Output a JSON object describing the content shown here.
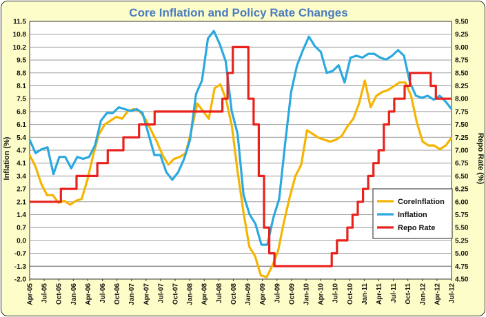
{
  "chart_data": {
    "type": "line",
    "title": "Core Inflation and Policy Rate Changes",
    "ylabel_left": "Inflation (%)",
    "ylabel_right": "Repo Rate (%)",
    "y_left_ticks": [
      "11.5",
      "10.8",
      "10.2",
      "9.5",
      "8.8",
      "8.1",
      "7.5",
      "6.8",
      "6.1",
      "5.4",
      "4.7",
      "4.1",
      "3.4",
      "2.7",
      "2.1",
      "1.4",
      "0.7",
      "0.0",
      "-0.7",
      "-1.3",
      "-2.0"
    ],
    "y_right_ticks": [
      "9.50",
      "9.25",
      "9.00",
      "8.75",
      "8.50",
      "8.25",
      "8.00",
      "7.75",
      "7.50",
      "7.25",
      "7.00",
      "6.75",
      "6.50",
      "6.25",
      "6.00",
      "5.75",
      "5.50",
      "5.25",
      "5.00",
      "4.75",
      "4.50"
    ],
    "y_left_range": [
      -2.0,
      11.5
    ],
    "y_right_range": [
      4.5,
      9.5
    ],
    "x_ticks": [
      "Apr-05",
      "Jul-05",
      "Oct-05",
      "Jan-06",
      "Apr-06",
      "Jul-06",
      "Oct-06",
      "Jan-07",
      "Apr-07",
      "Jul-07",
      "Oct-07",
      "Jan-08",
      "Apr-08",
      "Jul-08",
      "Oct-08",
      "Jan-09",
      "Apr-09",
      "Jul-09",
      "Oct-09",
      "Jan-10",
      "Apr-10",
      "Jul-10",
      "Oct-10",
      "Jan-11",
      "Apr-11",
      "Jul-11",
      "Oct-11",
      "Jan-12",
      "Apr-12",
      "Jul-12"
    ],
    "grid": "horizontal",
    "legend_position": "right",
    "series": [
      {
        "name": "CoreInflation",
        "axis": "left",
        "color": "#f4b400",
        "values": [
          4.5,
          3.9,
          3.0,
          2.4,
          2.4,
          2.0,
          2.1,
          1.9,
          2.1,
          2.2,
          3.2,
          4.5,
          5.6,
          6.1,
          6.3,
          6.5,
          6.4,
          6.8,
          6.9,
          6.8,
          6.4,
          5.8,
          5.2,
          4.5,
          4.0,
          4.3,
          4.4,
          4.6,
          5.8,
          7.2,
          6.8,
          6.4,
          8.0,
          8.2,
          7.4,
          6.0,
          3.6,
          1.5,
          -0.3,
          -0.8,
          -1.8,
          -1.9,
          -1.3,
          -0.5,
          1.0,
          2.3,
          3.4,
          4.0,
          5.8,
          5.6,
          5.4,
          5.3,
          5.2,
          5.3,
          5.5,
          6.0,
          6.4,
          7.2,
          8.4,
          7.0,
          7.6,
          7.8,
          7.9,
          8.1,
          8.3,
          8.3,
          7.6,
          6.2,
          5.2,
          5.0,
          5.0,
          4.8,
          5.0,
          5.4
        ]
      },
      {
        "name": "Inflation",
        "axis": "left",
        "color": "#2aa8e0",
        "values": [
          5.3,
          4.6,
          4.8,
          4.9,
          3.5,
          4.4,
          4.4,
          3.8,
          4.4,
          4.3,
          4.4,
          5.0,
          6.3,
          6.7,
          6.7,
          7.0,
          6.9,
          6.8,
          6.9,
          6.7,
          5.6,
          4.5,
          4.5,
          3.6,
          3.2,
          3.6,
          4.3,
          5.3,
          7.7,
          8.4,
          10.6,
          11.0,
          10.3,
          9.4,
          6.8,
          5.6,
          2.4,
          1.4,
          0.9,
          -0.2,
          -0.2,
          1.2,
          2.2,
          5.1,
          7.8,
          9.2,
          10.0,
          10.7,
          10.2,
          9.9,
          8.8,
          8.9,
          9.2,
          8.3,
          9.6,
          9.7,
          9.6,
          9.8,
          9.8,
          9.6,
          9.5,
          9.7,
          10.0,
          9.7,
          8.3,
          7.6,
          7.5,
          7.6,
          7.4,
          7.6,
          7.3,
          6.9
        ]
      },
      {
        "name": "Repo Rate",
        "axis": "right",
        "color": "#e8211c",
        "values": [
          6.0,
          6.0,
          6.0,
          6.0,
          6.0,
          6.0,
          6.25,
          6.25,
          6.25,
          6.5,
          6.5,
          6.5,
          6.5,
          6.75,
          6.75,
          7.0,
          7.0,
          7.0,
          7.25,
          7.25,
          7.25,
          7.5,
          7.5,
          7.5,
          7.75,
          7.75,
          7.75,
          7.75,
          7.75,
          7.75,
          7.75,
          7.75,
          7.75,
          7.75,
          7.75,
          7.75,
          7.75,
          8.0,
          8.5,
          9.0,
          9.0,
          9.0,
          8.0,
          7.5,
          6.5,
          5.5,
          5.0,
          4.75,
          4.75,
          4.75,
          4.75,
          4.75,
          4.75,
          4.75,
          4.75,
          4.75,
          4.75,
          4.75,
          5.0,
          5.25,
          5.25,
          5.5,
          5.75,
          6.0,
          6.25,
          6.5,
          6.75,
          7.0,
          7.5,
          7.75,
          8.0,
          8.0,
          8.25,
          8.5,
          8.5,
          8.5,
          8.5,
          8.25,
          8.0,
          8.0,
          8.0,
          8.0
        ]
      }
    ]
  }
}
